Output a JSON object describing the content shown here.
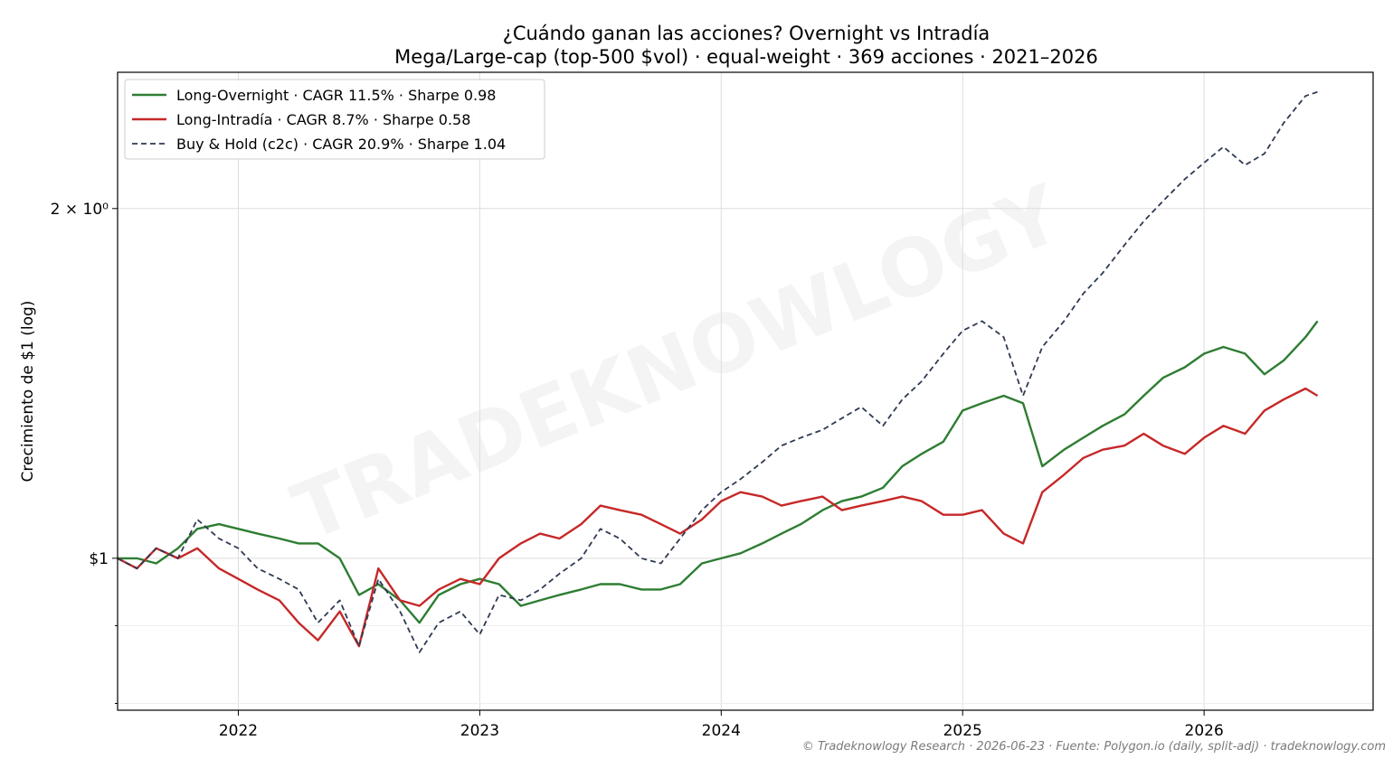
{
  "chart_data": {
    "type": "line",
    "title": "¿Cuándo ganan las acciones? Overnight vs Intradía",
    "subtitle": "Mega/Large-cap (top-500 $vol) · equal-weight · 369 acciones · 2021–2026",
    "ylabel": "Crecimiento de $1 (log)",
    "xlabel": "",
    "y_scale": "log",
    "ylim": [
      0.74,
      2.62
    ],
    "xlim": [
      2021.5,
      2026.7
    ],
    "x_ticks": [
      2022,
      2023,
      2024,
      2025,
      2026
    ],
    "x_tick_labels": [
      "2022",
      "2023",
      "2024",
      "2025",
      "2026"
    ],
    "y_ticks": [
      1,
      2
    ],
    "y_tick_labels": [
      "$1",
      "2 × 10⁰"
    ],
    "y_minor_ticks": [
      0.75,
      0.875
    ],
    "grid": true,
    "legend_position": "top-left",
    "watermark": "TRADEKNOWLOGY",
    "series": [
      {
        "name": "Long-Overnight · CAGR 11.5% · Sharpe 0.98",
        "color": "#2e7d32",
        "style": "solid",
        "x": [
          2021.5,
          2021.58,
          2021.66,
          2021.75,
          2021.83,
          2021.92,
          2022.0,
          2022.08,
          2022.17,
          2022.25,
          2022.33,
          2022.42,
          2022.5,
          2022.58,
          2022.67,
          2022.75,
          2022.83,
          2022.92,
          2023.0,
          2023.08,
          2023.17,
          2023.25,
          2023.33,
          2023.42,
          2023.5,
          2023.58,
          2023.67,
          2023.75,
          2023.83,
          2023.92,
          2024.0,
          2024.08,
          2024.17,
          2024.25,
          2024.33,
          2024.42,
          2024.5,
          2024.58,
          2024.67,
          2024.75,
          2024.83,
          2024.92,
          2025.0,
          2025.08,
          2025.17,
          2025.25,
          2025.33,
          2025.42,
          2025.5,
          2025.58,
          2025.67,
          2025.75,
          2025.83,
          2025.92,
          2026.0,
          2026.08,
          2026.17,
          2026.25,
          2026.33,
          2026.42,
          2026.47
        ],
        "values": [
          1.0,
          1.0,
          0.99,
          1.02,
          1.06,
          1.07,
          1.06,
          1.05,
          1.04,
          1.03,
          1.03,
          1.0,
          0.93,
          0.95,
          0.92,
          0.88,
          0.93,
          0.95,
          0.96,
          0.95,
          0.91,
          0.92,
          0.93,
          0.94,
          0.95,
          0.95,
          0.94,
          0.94,
          0.95,
          0.99,
          1.0,
          1.01,
          1.03,
          1.05,
          1.07,
          1.1,
          1.12,
          1.13,
          1.15,
          1.2,
          1.23,
          1.26,
          1.34,
          1.36,
          1.38,
          1.36,
          1.2,
          1.24,
          1.27,
          1.3,
          1.33,
          1.38,
          1.43,
          1.46,
          1.5,
          1.52,
          1.5,
          1.44,
          1.48,
          1.55,
          1.6
        ]
      },
      {
        "name": "Long-Intradía · CAGR 8.7% · Sharpe 0.58",
        "color": "#c62828",
        "style": "solid",
        "x": [
          2021.5,
          2021.58,
          2021.66,
          2021.75,
          2021.83,
          2021.92,
          2022.0,
          2022.08,
          2022.17,
          2022.25,
          2022.33,
          2022.42,
          2022.5,
          2022.58,
          2022.67,
          2022.75,
          2022.83,
          2022.92,
          2023.0,
          2023.08,
          2023.17,
          2023.25,
          2023.33,
          2023.42,
          2023.5,
          2023.58,
          2023.67,
          2023.75,
          2023.83,
          2023.92,
          2024.0,
          2024.08,
          2024.17,
          2024.25,
          2024.33,
          2024.42,
          2024.5,
          2024.58,
          2024.67,
          2024.75,
          2024.83,
          2024.92,
          2025.0,
          2025.08,
          2025.17,
          2025.25,
          2025.33,
          2025.42,
          2025.5,
          2025.58,
          2025.67,
          2025.75,
          2025.83,
          2025.92,
          2026.0,
          2026.08,
          2026.17,
          2026.25,
          2026.33,
          2026.42,
          2026.47
        ],
        "values": [
          1.0,
          0.98,
          1.02,
          1.0,
          1.02,
          0.98,
          0.96,
          0.94,
          0.92,
          0.88,
          0.85,
          0.9,
          0.84,
          0.98,
          0.92,
          0.91,
          0.94,
          0.96,
          0.95,
          1.0,
          1.03,
          1.05,
          1.04,
          1.07,
          1.11,
          1.1,
          1.09,
          1.07,
          1.05,
          1.08,
          1.12,
          1.14,
          1.13,
          1.11,
          1.12,
          1.13,
          1.1,
          1.11,
          1.12,
          1.13,
          1.12,
          1.09,
          1.09,
          1.1,
          1.05,
          1.03,
          1.14,
          1.18,
          1.22,
          1.24,
          1.25,
          1.28,
          1.25,
          1.23,
          1.27,
          1.3,
          1.28,
          1.34,
          1.37,
          1.4,
          1.38
        ]
      },
      {
        "name": "Buy & Hold (c2c) · CAGR 20.9% · Sharpe 1.04",
        "color": "#2f3a52",
        "style": "dashed",
        "x": [
          2021.5,
          2021.58,
          2021.66,
          2021.75,
          2021.83,
          2021.92,
          2022.0,
          2022.08,
          2022.17,
          2022.25,
          2022.33,
          2022.42,
          2022.5,
          2022.58,
          2022.67,
          2022.75,
          2022.83,
          2022.92,
          2023.0,
          2023.08,
          2023.17,
          2023.25,
          2023.33,
          2023.42,
          2023.5,
          2023.58,
          2023.67,
          2023.75,
          2023.83,
          2023.92,
          2024.0,
          2024.08,
          2024.17,
          2024.25,
          2024.33,
          2024.42,
          2024.5,
          2024.58,
          2024.67,
          2024.75,
          2024.83,
          2024.92,
          2025.0,
          2025.08,
          2025.17,
          2025.25,
          2025.33,
          2025.42,
          2025.5,
          2025.58,
          2025.67,
          2025.75,
          2025.83,
          2025.92,
          2026.0,
          2026.08,
          2026.17,
          2026.25,
          2026.33,
          2026.42,
          2026.47
        ],
        "values": [
          1.0,
          0.98,
          1.02,
          1.0,
          1.08,
          1.04,
          1.02,
          0.98,
          0.96,
          0.94,
          0.88,
          0.92,
          0.84,
          0.96,
          0.9,
          0.83,
          0.88,
          0.9,
          0.86,
          0.93,
          0.92,
          0.94,
          0.97,
          1.0,
          1.06,
          1.04,
          1.0,
          0.99,
          1.04,
          1.1,
          1.14,
          1.17,
          1.21,
          1.25,
          1.27,
          1.29,
          1.32,
          1.35,
          1.3,
          1.37,
          1.42,
          1.5,
          1.57,
          1.6,
          1.55,
          1.38,
          1.52,
          1.6,
          1.69,
          1.76,
          1.86,
          1.95,
          2.03,
          2.12,
          2.19,
          2.26,
          2.18,
          2.23,
          2.37,
          2.5,
          2.52
        ]
      }
    ]
  },
  "footer": {
    "credit": "© Tradeknowlogy Research   ·   2026-06-23   ·   Fuente: Polygon.io (daily, split-adj)   ·   tradeknowlogy.com"
  }
}
